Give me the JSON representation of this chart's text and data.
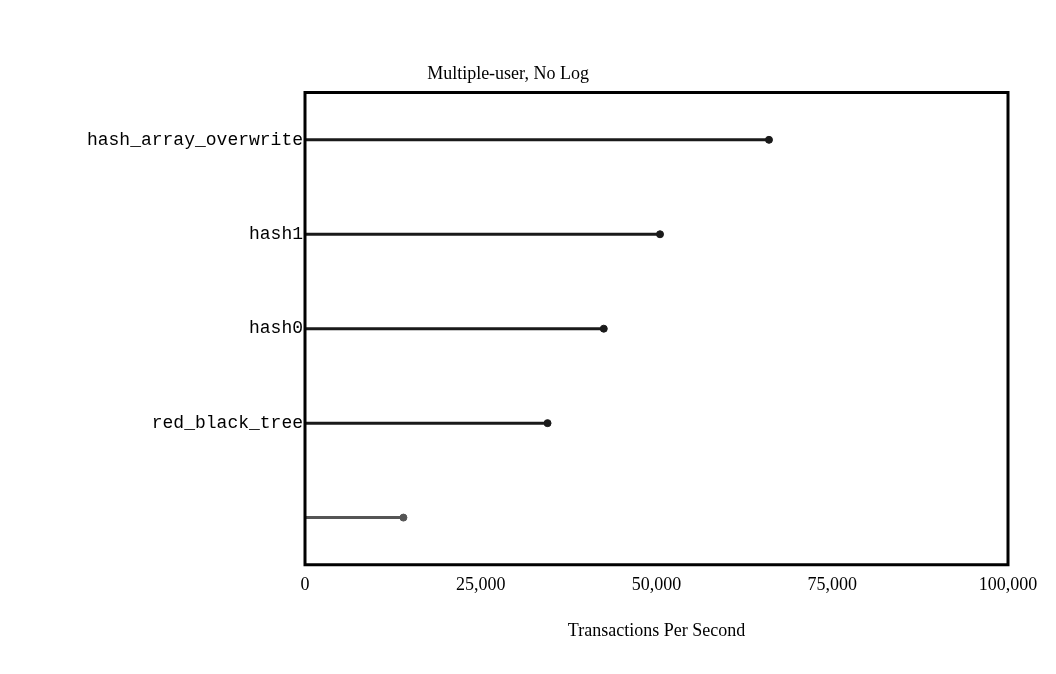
{
  "chart_data": {
    "type": "lollipop",
    "orientation": "horizontal",
    "title": "Multiple-user, No Log",
    "xlabel": "Transactions Per Second",
    "categories": [
      "hash_array_overwrite",
      "hash1",
      "hash0",
      "red_black_tree",
      null
    ],
    "values": [
      66000,
      50500,
      42500,
      34500,
      14000
    ],
    "colors": [
      "#1a1a1a",
      "#1a1a1a",
      "#1a1a1a",
      "#1a1a1a",
      "#555555"
    ],
    "xlim": [
      0,
      100000
    ],
    "xticks": [
      0,
      {
        "value": 25000,
        "label": "25,000"
      },
      {
        "value": 50000,
        "label": "50,000"
      },
      {
        "value": 75000,
        "label": "75,000"
      },
      {
        "value": 100000,
        "label": "100,000"
      }
    ],
    "marker": "circle"
  }
}
